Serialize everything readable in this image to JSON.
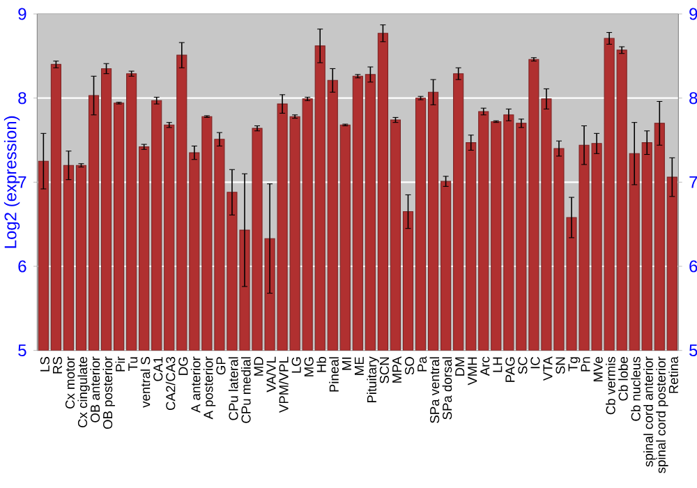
{
  "chart_data": {
    "type": "bar",
    "ylabel": "Log2 (expression)",
    "categories": [
      "LS",
      "RS",
      "Cx motor",
      "Cx cingulate",
      "OB anterior",
      "OB posterior",
      "Pir",
      "Tu",
      "ventral S",
      "CA1",
      "CA2/CA3",
      "DG",
      "A anterior",
      "A posterior",
      "GP",
      "CPu lateral",
      "CPu medial",
      "MD",
      "VA/VL",
      "VPM/VPL",
      "LG",
      "MG",
      "Hb",
      "Pineal",
      "MI",
      "ME",
      "Pituitary",
      "SCN",
      "MPA",
      "SO",
      "Pa",
      "SPa ventral",
      "SPa dorsal",
      "DM",
      "VMH",
      "Arc",
      "LH",
      "PAG",
      "SC",
      "IC",
      "VTA",
      "SN",
      "Tg",
      "Pn",
      "MVe",
      "Cb vermis",
      "Cb lobe",
      "Cb nucleus",
      "spinal cord anterior",
      "spinal cord posterior",
      "Retina"
    ],
    "values": [
      7.25,
      8.4,
      7.2,
      7.2,
      8.03,
      8.35,
      7.94,
      8.29,
      7.42,
      7.97,
      7.68,
      8.51,
      7.35,
      7.78,
      7.51,
      6.88,
      6.43,
      7.64,
      6.33,
      7.93,
      7.78,
      7.99,
      8.62,
      8.21,
      7.68,
      8.26,
      8.28,
      8.77,
      7.74,
      6.65,
      8.0,
      8.07,
      7.01,
      8.29,
      7.47,
      7.84,
      7.72,
      7.8,
      7.7,
      8.46,
      7.99,
      7.4,
      6.58,
      7.44,
      7.46,
      8.71,
      8.57,
      7.34,
      7.47,
      7.7,
      7.06
    ],
    "errors": [
      0.33,
      0.04,
      0.17,
      0.02,
      0.23,
      0.06,
      0.01,
      0.03,
      0.03,
      0.04,
      0.03,
      0.15,
      0.08,
      0.01,
      0.08,
      0.27,
      0.67,
      0.03,
      0.65,
      0.11,
      0.02,
      0.02,
      0.2,
      0.14,
      0.01,
      0.02,
      0.09,
      0.1,
      0.03,
      0.2,
      0.02,
      0.15,
      0.06,
      0.07,
      0.09,
      0.04,
      0.01,
      0.07,
      0.05,
      0.02,
      0.12,
      0.09,
      0.24,
      0.23,
      0.12,
      0.07,
      0.04,
      0.37,
      0.14,
      0.26,
      0.23
    ],
    "color": "#b03030",
    "ylim": [
      5,
      9
    ],
    "yticks": [
      5,
      6,
      7,
      8,
      9
    ],
    "y2lim": [
      5,
      9
    ],
    "y2ticks": [
      5,
      6,
      7,
      8,
      9
    ],
    "grid": "y"
  }
}
